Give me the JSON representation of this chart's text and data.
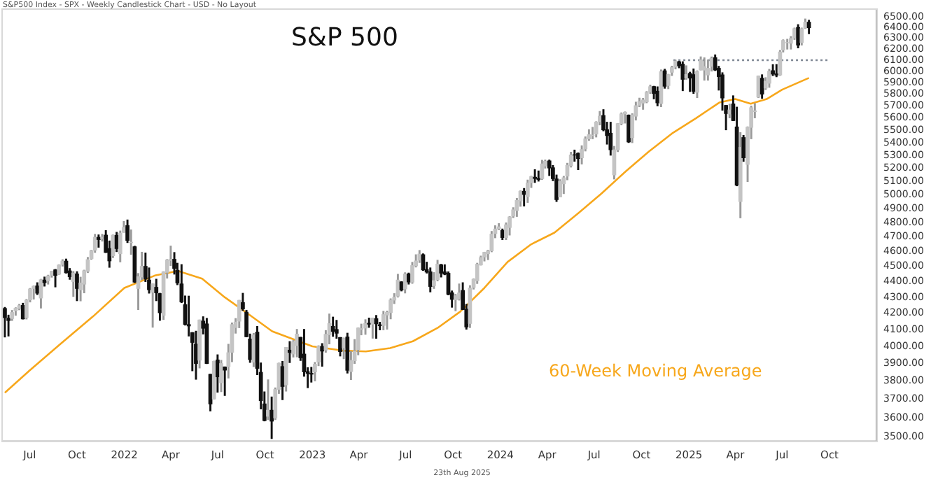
{
  "chart_data": {
    "type": "candlestick",
    "title": "S&P 500",
    "annotations": [
      "S&P500 Index - SPX - Weekly Candlestick Chart - USD - No Layout",
      "23th Aug 2025"
    ],
    "x": [
      "2021-05-14",
      "2021-05-21",
      "2021-05-28",
      "2021-06-04",
      "2021-06-11",
      "2021-06-18",
      "2021-06-25",
      "2021-07-02",
      "2021-07-09",
      "2021-07-16",
      "2021-07-23",
      "2021-07-30",
      "2021-08-06",
      "2021-08-13",
      "2021-08-20",
      "2021-08-27",
      "2021-09-03",
      "2021-09-10",
      "2021-09-17",
      "2021-09-24",
      "2021-10-01",
      "2021-10-08",
      "2021-10-15",
      "2021-10-22",
      "2021-10-29",
      "2021-11-05",
      "2021-11-12",
      "2021-11-19",
      "2021-11-26",
      "2021-12-03",
      "2021-12-10",
      "2021-12-17",
      "2021-12-24",
      "2021-12-31",
      "2022-01-07",
      "2022-01-14",
      "2022-01-21",
      "2022-01-28",
      "2022-02-04",
      "2022-02-11",
      "2022-02-18",
      "2022-02-25",
      "2022-03-04",
      "2022-03-11",
      "2022-03-18",
      "2022-03-25",
      "2022-04-01",
      "2022-04-08",
      "2022-04-14",
      "2022-04-22",
      "2022-04-29",
      "2022-05-06",
      "2022-05-13",
      "2022-05-20",
      "2022-05-27",
      "2022-06-03",
      "2022-06-10",
      "2022-06-17",
      "2022-06-24",
      "2022-07-01",
      "2022-07-08",
      "2022-07-15",
      "2022-07-22",
      "2022-07-29",
      "2022-08-05",
      "2022-08-12",
      "2022-08-19",
      "2022-08-26",
      "2022-09-02",
      "2022-09-09",
      "2022-09-16",
      "2022-09-23",
      "2022-09-30",
      "2022-10-07",
      "2022-10-14",
      "2022-10-21",
      "2022-10-28",
      "2022-11-04",
      "2022-11-11",
      "2022-11-18",
      "2022-11-25",
      "2022-12-02",
      "2022-12-09",
      "2022-12-16",
      "2022-12-23",
      "2022-12-30",
      "2023-01-06",
      "2023-01-13",
      "2023-01-20",
      "2023-01-27",
      "2023-02-03",
      "2023-02-10",
      "2023-02-17",
      "2023-02-24",
      "2023-03-03",
      "2023-03-10",
      "2023-03-17",
      "2023-03-24",
      "2023-03-31",
      "2023-04-06",
      "2023-04-14",
      "2023-04-21",
      "2023-04-28",
      "2023-05-05",
      "2023-05-12",
      "2023-05-19",
      "2023-05-26",
      "2023-06-02",
      "2023-06-09",
      "2023-06-16",
      "2023-06-23",
      "2023-06-30",
      "2023-07-07",
      "2023-07-14",
      "2023-07-21",
      "2023-07-28",
      "2023-08-04",
      "2023-08-11",
      "2023-08-18",
      "2023-08-25",
      "2023-09-01",
      "2023-09-08",
      "2023-09-15",
      "2023-09-22",
      "2023-09-29",
      "2023-10-06",
      "2023-10-13",
      "2023-10-20",
      "2023-10-27",
      "2023-11-03",
      "2023-11-10",
      "2023-11-17",
      "2023-11-24",
      "2023-12-01",
      "2023-12-08",
      "2023-12-15",
      "2023-12-22",
      "2023-12-29",
      "2024-01-05",
      "2024-01-12",
      "2024-01-19",
      "2024-01-26",
      "2024-02-02",
      "2024-02-09",
      "2024-02-16",
      "2024-02-23",
      "2024-03-01",
      "2024-03-08",
      "2024-03-15",
      "2024-03-22",
      "2024-03-28",
      "2024-04-05",
      "2024-04-12",
      "2024-04-19",
      "2024-04-26",
      "2024-05-03",
      "2024-05-10",
      "2024-05-17",
      "2024-05-24",
      "2024-05-31",
      "2024-06-07",
      "2024-06-14",
      "2024-06-21",
      "2024-06-28",
      "2024-07-05",
      "2024-07-12",
      "2024-07-19",
      "2024-07-26",
      "2024-08-02",
      "2024-08-09",
      "2024-08-16",
      "2024-08-23",
      "2024-08-30",
      "2024-09-06",
      "2024-09-13",
      "2024-09-20",
      "2024-09-27",
      "2024-10-04",
      "2024-10-11",
      "2024-10-18",
      "2024-10-25",
      "2024-11-01",
      "2024-11-08",
      "2024-11-15",
      "2024-11-22",
      "2024-11-29",
      "2024-12-06",
      "2024-12-13",
      "2024-12-20",
      "2024-12-27",
      "2025-01-03",
      "2025-01-10",
      "2025-01-17",
      "2025-01-24",
      "2025-01-31",
      "2025-02-07",
      "2025-02-14",
      "2025-02-21",
      "2025-02-28",
      "2025-03-07",
      "2025-03-14",
      "2025-03-21",
      "2025-03-28",
      "2025-04-04",
      "2025-04-11",
      "2025-04-17",
      "2025-04-25",
      "2025-05-02",
      "2025-05-09",
      "2025-05-16",
      "2025-05-23",
      "2025-05-30",
      "2025-06-06",
      "2025-06-13",
      "2025-06-20",
      "2025-06-27",
      "2025-07-03",
      "2025-07-11",
      "2025-07-18",
      "2025-07-25",
      "2025-08-01",
      "2025-08-08",
      "2025-08-15",
      "2025-08-22"
    ],
    "ohlc": [
      [
        4229,
        4236,
        4056,
        4174
      ],
      [
        4169,
        4188,
        4062,
        4156
      ],
      [
        4168,
        4217,
        4156,
        4204
      ],
      [
        4217,
        4234,
        4188,
        4230
      ],
      [
        4230,
        4255,
        4222,
        4247
      ],
      [
        4248,
        4262,
        4165,
        4166
      ],
      [
        4174,
        4286,
        4165,
        4281
      ],
      [
        4285,
        4356,
        4271,
        4352
      ],
      [
        4357,
        4372,
        4289,
        4370
      ],
      [
        4372,
        4393,
        4318,
        4327
      ],
      [
        4296,
        4415,
        4233,
        4412
      ],
      [
        4410,
        4430,
        4372,
        4395
      ],
      [
        4406,
        4442,
        4385,
        4437
      ],
      [
        4443,
        4468,
        4430,
        4468
      ],
      [
        4477,
        4480,
        4367,
        4442
      ],
      [
        4450,
        4511,
        4448,
        4509
      ],
      [
        4514,
        4545,
        4503,
        4535
      ],
      [
        4535,
        4549,
        4457,
        4459
      ],
      [
        4470,
        4486,
        4416,
        4433
      ],
      [
        4402,
        4466,
        4306,
        4455
      ],
      [
        4450,
        4465,
        4279,
        4357
      ],
      [
        4348,
        4429,
        4278,
        4391
      ],
      [
        4385,
        4475,
        4329,
        4471
      ],
      [
        4469,
        4560,
        4460,
        4545
      ],
      [
        4554,
        4608,
        4549,
        4605
      ],
      [
        4610,
        4718,
        4595,
        4697
      ],
      [
        4697,
        4714,
        4630,
        4683
      ],
      [
        4689,
        4718,
        4672,
        4698
      ],
      [
        4712,
        4744,
        4594,
        4595
      ],
      [
        4620,
        4672,
        4495,
        4538
      ],
      [
        4572,
        4713,
        4560,
        4712
      ],
      [
        4710,
        4732,
        4600,
        4621
      ],
      [
        4586,
        4741,
        4531,
        4726
      ],
      [
        4733,
        4808,
        4733,
        4766
      ],
      [
        4779,
        4819,
        4662,
        4677
      ],
      [
        4662,
        4749,
        4582,
        4663
      ],
      [
        4632,
        4636,
        4395,
        4398
      ],
      [
        4357,
        4453,
        4223,
        4432
      ],
      [
        4431,
        4595,
        4414,
        4500
      ],
      [
        4500,
        4590,
        4401,
        4419
      ],
      [
        4410,
        4490,
        4327,
        4349
      ],
      [
        4333,
        4385,
        4115,
        4385
      ],
      [
        4363,
        4416,
        4279,
        4329
      ],
      [
        4323,
        4325,
        4157,
        4204
      ],
      [
        4188,
        4465,
        4162,
        4463
      ],
      [
        4462,
        4546,
        4424,
        4543
      ],
      [
        4541,
        4637,
        4507,
        4546
      ],
      [
        4547,
        4593,
        4450,
        4488
      ],
      [
        4474,
        4521,
        4381,
        4393
      ],
      [
        4385,
        4512,
        4267,
        4272
      ],
      [
        4253,
        4308,
        4128,
        4132
      ],
      [
        4130,
        4307,
        4062,
        4123
      ],
      [
        4081,
        4082,
        3859,
        4024
      ],
      [
        4013,
        4090,
        3811,
        3901
      ],
      [
        3920,
        4158,
        3875,
        4158
      ],
      [
        4151,
        4178,
        4074,
        4109
      ],
      [
        4134,
        4168,
        3900,
        3901
      ],
      [
        3838,
        3838,
        3637,
        3675
      ],
      [
        3702,
        3913,
        3702,
        3912
      ],
      [
        3920,
        3950,
        3739,
        3825
      ],
      [
        3792,
        3918,
        3742,
        3899
      ],
      [
        3880,
        3880,
        3721,
        3863
      ],
      [
        3883,
        4012,
        3818,
        3962
      ],
      [
        3966,
        4140,
        3911,
        4130
      ],
      [
        4113,
        4167,
        4079,
        4145
      ],
      [
        4152,
        4280,
        4112,
        4280
      ],
      [
        4266,
        4325,
        4218,
        4228
      ],
      [
        4206,
        4218,
        4057,
        4058
      ],
      [
        4043,
        4073,
        3907,
        3924
      ],
      [
        3909,
        4077,
        3883,
        4067
      ],
      [
        4084,
        4119,
        3837,
        3873
      ],
      [
        3849,
        3903,
        3648,
        3693
      ],
      [
        3674,
        3740,
        3584,
        3586
      ],
      [
        3609,
        3807,
        3591,
        3640
      ],
      [
        3640,
        3712,
        3492,
        3583
      ],
      [
        3600,
        3762,
        3591,
        3753
      ],
      [
        3755,
        3902,
        3732,
        3901
      ],
      [
        3882,
        3912,
        3698,
        3771
      ],
      [
        3780,
        3993,
        3745,
        3993
      ],
      [
        3977,
        4028,
        3906,
        3965
      ],
      [
        3956,
        4034,
        3938,
        4027
      ],
      [
        4006,
        4101,
        3939,
        4072
      ],
      [
        4053,
        4053,
        3918,
        3934
      ],
      [
        3954,
        4101,
        3828,
        3853
      ],
      [
        3853,
        3876,
        3764,
        3845
      ],
      [
        3843,
        3878,
        3795,
        3840
      ],
      [
        3853,
        3906,
        3802,
        3895
      ],
      [
        3910,
        4003,
        3888,
        3999
      ],
      [
        3999,
        4016,
        3885,
        3973
      ],
      [
        3979,
        4094,
        3966,
        4071
      ],
      [
        4070,
        4195,
        4015,
        4136
      ],
      [
        4119,
        4176,
        4060,
        4090
      ],
      [
        4100,
        4156,
        4048,
        4079
      ],
      [
        4052,
        4052,
        3944,
        3970
      ],
      [
        3992,
        4049,
        3928,
        4046
      ],
      [
        4055,
        4078,
        3846,
        3862
      ],
      [
        3855,
        3969,
        3809,
        3917
      ],
      [
        3917,
        4040,
        3901,
        3971
      ],
      [
        3982,
        4110,
        3951,
        4109
      ],
      [
        4102,
        4133,
        4069,
        4105
      ],
      [
        4110,
        4160,
        4072,
        4137
      ],
      [
        4138,
        4170,
        4114,
        4134
      ],
      [
        4134,
        4170,
        4049,
        4169
      ],
      [
        4166,
        4186,
        4048,
        4136
      ],
      [
        4129,
        4144,
        4099,
        4124
      ],
      [
        4126,
        4212,
        4099,
        4191
      ],
      [
        4190,
        4213,
        4103,
        4205
      ],
      [
        4205,
        4290,
        4166,
        4282
      ],
      [
        4283,
        4323,
        4261,
        4299
      ],
      [
        4308,
        4448,
        4302,
        4410
      ],
      [
        4398,
        4400,
        4341,
        4348
      ],
      [
        4354,
        4458,
        4328,
        4450
      ],
      [
        4450,
        4456,
        4385,
        4399
      ],
      [
        4398,
        4527,
        4390,
        4505
      ],
      [
        4505,
        4578,
        4497,
        4536
      ],
      [
        4543,
        4607,
        4527,
        4582
      ],
      [
        4578,
        4584,
        4474,
        4478
      ],
      [
        4479,
        4528,
        4457,
        4464
      ],
      [
        4464,
        4490,
        4335,
        4370
      ],
      [
        4375,
        4459,
        4357,
        4406
      ],
      [
        4415,
        4541,
        4406,
        4515
      ],
      [
        4510,
        4514,
        4431,
        4457
      ],
      [
        4464,
        4511,
        4446,
        4450
      ],
      [
        4454,
        4464,
        4316,
        4320
      ],
      [
        4328,
        4340,
        4238,
        4288
      ],
      [
        4285,
        4318,
        4216,
        4309
      ],
      [
        4289,
        4385,
        4283,
        4327
      ],
      [
        4343,
        4393,
        4223,
        4224
      ],
      [
        4225,
        4256,
        4103,
        4117
      ],
      [
        4138,
        4374,
        4113,
        4358
      ],
      [
        4364,
        4418,
        4353,
        4415
      ],
      [
        4407,
        4521,
        4389,
        4514
      ],
      [
        4511,
        4569,
        4510,
        4559
      ],
      [
        4564,
        4595,
        4537,
        4594
      ],
      [
        4586,
        4609,
        4546,
        4604
      ],
      [
        4606,
        4738,
        4599,
        4719
      ],
      [
        4725,
        4778,
        4695,
        4755
      ],
      [
        4758,
        4793,
        4751,
        4770
      ],
      [
        4745,
        4755,
        4682,
        4697
      ],
      [
        4697,
        4798,
        4682,
        4784
      ],
      [
        4767,
        4843,
        4714,
        4840
      ],
      [
        4848,
        4907,
        4837,
        4891
      ],
      [
        4888,
        4975,
        4845,
        4959
      ],
      [
        4957,
        5030,
        4918,
        5027
      ],
      [
        5027,
        5048,
        4920,
        5005
      ],
      [
        4990,
        5111,
        4946,
        5089
      ],
      [
        5093,
        5140,
        5056,
        5137
      ],
      [
        5132,
        5190,
        5094,
        5124
      ],
      [
        5124,
        5180,
        5104,
        5117
      ],
      [
        5123,
        5262,
        5117,
        5234
      ],
      [
        5219,
        5264,
        5203,
        5254
      ],
      [
        5257,
        5264,
        5146,
        5204
      ],
      [
        5204,
        5222,
        5107,
        5123
      ],
      [
        5119,
        5149,
        4953,
        4967
      ],
      [
        4987,
        5114,
        4987,
        5100
      ],
      [
        5084,
        5139,
        5011,
        5128
      ],
      [
        5142,
        5239,
        5114,
        5223
      ],
      [
        5221,
        5325,
        5211,
        5303
      ],
      [
        5305,
        5342,
        5256,
        5304
      ],
      [
        5316,
        5320,
        5191,
        5277
      ],
      [
        5283,
        5376,
        5234,
        5346
      ],
      [
        5353,
        5447,
        5336,
        5431
      ],
      [
        5432,
        5505,
        5420,
        5464
      ],
      [
        5459,
        5524,
        5433,
        5460
      ],
      [
        5471,
        5570,
        5447,
        5567
      ],
      [
        5572,
        5655,
        5545,
        5615
      ],
      [
        5621,
        5670,
        5497,
        5505
      ],
      [
        5505,
        5566,
        5390,
        5459
      ],
      [
        5476,
        5566,
        5303,
        5346
      ],
      [
        5151,
        5371,
        5120,
        5344
      ],
      [
        5345,
        5555,
        5331,
        5554
      ],
      [
        5557,
        5643,
        5546,
        5634
      ],
      [
        5636,
        5651,
        5560,
        5648
      ],
      [
        5624,
        5626,
        5403,
        5408
      ],
      [
        5442,
        5636,
        5402,
        5626
      ],
      [
        5617,
        5733,
        5585,
        5703
      ],
      [
        5709,
        5767,
        5696,
        5738
      ],
      [
        5727,
        5765,
        5674,
        5751
      ],
      [
        5737,
        5823,
        5729,
        5815
      ],
      [
        5820,
        5879,
        5809,
        5865
      ],
      [
        5866,
        5869,
        5762,
        5808
      ],
      [
        5826,
        5864,
        5703,
        5729
      ],
      [
        5723,
        6012,
        5696,
        5996
      ],
      [
        6004,
        6018,
        5853,
        5871
      ],
      [
        5877,
        5973,
        5849,
        5970
      ],
      [
        5993,
        6045,
        5964,
        6032
      ],
      [
        6040,
        6099,
        6022,
        6090
      ],
      [
        6084,
        6089,
        6032,
        6051
      ],
      [
        6063,
        6085,
        5832,
        5931
      ],
      [
        5942,
        6049,
        5931,
        5971
      ],
      [
        5981,
        5992,
        5825,
        5942
      ],
      [
        5970,
        6021,
        5809,
        5827
      ],
      [
        5819,
        6004,
        5773,
        5997
      ],
      [
        6014,
        6129,
        6013,
        6101
      ],
      [
        6012,
        6120,
        5923,
        6041
      ],
      [
        5969,
        6101,
        5923,
        6026
      ],
      [
        6046,
        6128,
        6003,
        6115
      ],
      [
        6121,
        6147,
        6008,
        6013
      ],
      [
        6026,
        6044,
        5837,
        5955
      ],
      [
        5968,
        5987,
        5667,
        5770
      ],
      [
        5705,
        5705,
        5505,
        5639
      ],
      [
        5635,
        5716,
        5603,
        5667
      ],
      [
        5718,
        5787,
        5580,
        5581
      ],
      [
        5527,
        5691,
        5069,
        5074
      ],
      [
        4953,
        5481,
        4835,
        5363
      ],
      [
        5441,
        5459,
        5255,
        5283
      ],
      [
        5232,
        5528,
        5101,
        5525
      ],
      [
        5525,
        5700,
        5433,
        5686
      ],
      [
        5655,
        5721,
        5603,
        5660
      ],
      [
        5778,
        5959,
        5773,
        5958
      ],
      [
        5938,
        5969,
        5767,
        5803
      ],
      [
        5855,
        5944,
        5842,
        5912
      ],
      [
        5897,
        6017,
        5861,
        6000
      ],
      [
        6005,
        6059,
        5963,
        5977
      ],
      [
        5977,
        6060,
        5953,
        5968
      ],
      [
        5969,
        6187,
        5965,
        6173
      ],
      [
        6193,
        6285,
        6174,
        6279
      ],
      [
        6260,
        6290,
        6201,
        6260
      ],
      [
        6255,
        6315,
        6201,
        6297
      ],
      [
        6304,
        6395,
        6290,
        6389
      ],
      [
        6400,
        6427,
        6212,
        6238
      ],
      [
        6261,
        6395,
        6238,
        6389
      ],
      [
        6397,
        6481,
        6392,
        6450
      ],
      [
        6450,
        6469,
        6343,
        6400
      ]
    ],
    "series": [
      {
        "name": "60-Week Moving Average",
        "type": "line",
        "color": "#f7a71b",
        "x": [
          "2021-05-14",
          "2021-07-01",
          "2021-09-01",
          "2021-11-01",
          "2022-01-01",
          "2022-03-01",
          "2022-04-15",
          "2022-06-01",
          "2022-07-15",
          "2022-09-01",
          "2022-10-15",
          "2023-01-01",
          "2023-03-01",
          "2023-04-15",
          "2023-06-01",
          "2023-07-15",
          "2023-09-01",
          "2023-10-15",
          "2023-12-01",
          "2024-01-15",
          "2024-03-01",
          "2024-04-15",
          "2024-06-01",
          "2024-07-15",
          "2024-09-01",
          "2024-10-15",
          "2024-12-01",
          "2025-01-15",
          "2025-03-01",
          "2025-04-01",
          "2025-05-01",
          "2025-06-01",
          "2025-07-01",
          "2025-08-22"
        ],
        "values": [
          3736,
          3860,
          4020,
          4180,
          4360,
          4440,
          4470,
          4420,
          4300,
          4190,
          4090,
          4000,
          3975,
          3970,
          3990,
          4030,
          4110,
          4210,
          4360,
          4530,
          4650,
          4730,
          4870,
          5010,
          5180,
          5330,
          5480,
          5600,
          5730,
          5760,
          5720,
          5760,
          5840,
          5942
        ]
      },
      {
        "type": "line",
        "color": "#7f8894",
        "line_style": "dotted",
        "x": [
          "2024-12-02",
          "2025-09-29"
        ],
        "values": [
          6100,
          6100
        ]
      }
    ],
    "xlim": [
      "2021-05-10",
      "2025-12-31"
    ],
    "xticks": [
      {
        "value": "2021-07-01",
        "label": "Jul"
      },
      {
        "value": "2021-10-01",
        "label": "Oct"
      },
      {
        "value": "2022-01-01",
        "label": "2022"
      },
      {
        "value": "2022-04-01",
        "label": "Apr"
      },
      {
        "value": "2022-07-01",
        "label": "Jul"
      },
      {
        "value": "2022-10-01",
        "label": "Oct"
      },
      {
        "value": "2023-01-01",
        "label": "2023"
      },
      {
        "value": "2023-04-01",
        "label": "Apr"
      },
      {
        "value": "2023-07-01",
        "label": "Jul"
      },
      {
        "value": "2023-10-01",
        "label": "Oct"
      },
      {
        "value": "2024-01-01",
        "label": "2024"
      },
      {
        "value": "2024-04-01",
        "label": "Apr"
      },
      {
        "value": "2024-07-01",
        "label": "Jul"
      },
      {
        "value": "2024-10-01",
        "label": "Oct"
      },
      {
        "value": "2025-01-01",
        "label": "2025"
      },
      {
        "value": "2025-04-01",
        "label": "Apr"
      },
      {
        "value": "2025-07-01",
        "label": "Jul"
      },
      {
        "value": "2025-10-01",
        "label": "Oct"
      }
    ],
    "ylim": [
      3480,
      6570
    ],
    "yticks": [
      {
        "value": 3500,
        "label": "3500.00"
      },
      {
        "value": 3600,
        "label": "3600.00"
      },
      {
        "value": 3700,
        "label": "3700.00"
      },
      {
        "value": 3800,
        "label": "3800.00"
      },
      {
        "value": 3900,
        "label": "3900.00"
      },
      {
        "value": 4000,
        "label": "4000.00"
      },
      {
        "value": 4100,
        "label": "4100.00"
      },
      {
        "value": 4200,
        "label": "4200.00"
      },
      {
        "value": 4300,
        "label": "4300.00"
      },
      {
        "value": 4400,
        "label": "4400.00"
      },
      {
        "value": 4500,
        "label": "4500.00"
      },
      {
        "value": 4600,
        "label": "4600.00"
      },
      {
        "value": 4700,
        "label": "4700.00"
      },
      {
        "value": 4800,
        "label": "4800.00"
      },
      {
        "value": 4900,
        "label": "4900.00"
      },
      {
        "value": 5000,
        "label": "5000.00"
      },
      {
        "value": 5100,
        "label": "5100.00"
      },
      {
        "value": 5200,
        "label": "5200.00"
      },
      {
        "value": 5300,
        "label": "5300.00"
      },
      {
        "value": 5400,
        "label": "5400.00"
      },
      {
        "value": 5500,
        "label": "5500.00"
      },
      {
        "value": 5600,
        "label": "5600.00"
      },
      {
        "value": 5700,
        "label": "5700.00"
      },
      {
        "value": 5800,
        "label": "5800.00"
      },
      {
        "value": 5900,
        "label": "5900.00"
      },
      {
        "value": 6000,
        "label": "6000.00"
      },
      {
        "value": 6100,
        "label": "6100.00"
      },
      {
        "value": 6200,
        "label": "6200.00"
      },
      {
        "value": 6300,
        "label": "6300.00"
      },
      {
        "value": 6400,
        "label": "6400.00"
      },
      {
        "value": 6500,
        "label": "6500.00"
      }
    ],
    "log": true,
    "grid": false,
    "legend": false,
    "marker": "none"
  }
}
